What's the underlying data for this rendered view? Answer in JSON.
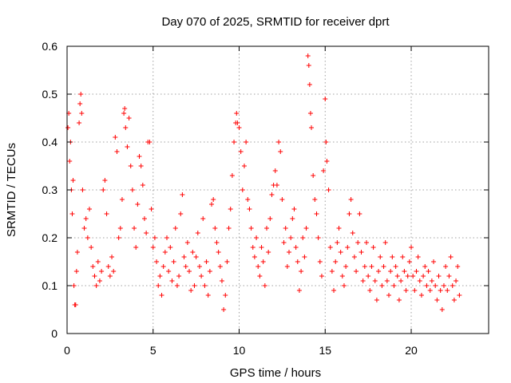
{
  "chart_data": {
    "type": "scatter",
    "title": "Day 070 of 2025, SRMTID for receiver dprt",
    "xlabel": "GPS time / hours",
    "ylabel": "SRMTID / TECUs",
    "xlim": [
      0,
      24.5
    ],
    "ylim": [
      0,
      0.6
    ],
    "xticks": [
      0,
      5,
      10,
      15,
      20
    ],
    "xtick_labels": [
      "0",
      "5",
      "10",
      "15",
      "20"
    ],
    "yticks": [
      0,
      0.1,
      0.2,
      0.3,
      0.4,
      0.5,
      0.6
    ],
    "ytick_labels": [
      "0",
      "0.1",
      "0.2",
      "0.3",
      "0.4",
      "0.5",
      "0.6"
    ],
    "grid": true,
    "marker": "+",
    "color": "#ff0000",
    "series": [
      {
        "name": "SRMTID",
        "points": [
          [
            0.05,
            0.43
          ],
          [
            0.1,
            0.46
          ],
          [
            0.15,
            0.36
          ],
          [
            0.2,
            0.4
          ],
          [
            0.25,
            0.3
          ],
          [
            0.3,
            0.25
          ],
          [
            0.35,
            0.32
          ],
          [
            0.4,
            0.1
          ],
          [
            0.45,
            0.06
          ],
          [
            0.5,
            0.06
          ],
          [
            0.55,
            0.13
          ],
          [
            0.6,
            0.17
          ],
          [
            0.7,
            0.44
          ],
          [
            0.75,
            0.48
          ],
          [
            0.8,
            0.5
          ],
          [
            0.85,
            0.46
          ],
          [
            0.9,
            0.3
          ],
          [
            1.0,
            0.22
          ],
          [
            1.1,
            0.24
          ],
          [
            1.2,
            0.2
          ],
          [
            1.3,
            0.26
          ],
          [
            1.4,
            0.18
          ],
          [
            1.5,
            0.14
          ],
          [
            1.6,
            0.12
          ],
          [
            1.7,
            0.1
          ],
          [
            1.8,
            0.15
          ],
          [
            1.9,
            0.11
          ],
          [
            2.0,
            0.13
          ],
          [
            2.1,
            0.3
          ],
          [
            2.2,
            0.32
          ],
          [
            2.3,
            0.25
          ],
          [
            2.4,
            0.14
          ],
          [
            2.5,
            0.12
          ],
          [
            2.6,
            0.16
          ],
          [
            2.7,
            0.13
          ],
          [
            2.8,
            0.41
          ],
          [
            2.9,
            0.38
          ],
          [
            3.0,
            0.2
          ],
          [
            3.1,
            0.22
          ],
          [
            3.2,
            0.28
          ],
          [
            3.3,
            0.46
          ],
          [
            3.35,
            0.47
          ],
          [
            3.4,
            0.43
          ],
          [
            3.5,
            0.39
          ],
          [
            3.6,
            0.45
          ],
          [
            3.7,
            0.35
          ],
          [
            3.8,
            0.3
          ],
          [
            3.9,
            0.22
          ],
          [
            4.0,
            0.18
          ],
          [
            4.1,
            0.27
          ],
          [
            4.2,
            0.37
          ],
          [
            4.3,
            0.35
          ],
          [
            4.4,
            0.31
          ],
          [
            4.5,
            0.24
          ],
          [
            4.6,
            0.21
          ],
          [
            4.7,
            0.4
          ],
          [
            4.8,
            0.4
          ],
          [
            4.9,
            0.26
          ],
          [
            5.0,
            0.18
          ],
          [
            5.1,
            0.2
          ],
          [
            5.2,
            0.15
          ],
          [
            5.3,
            0.1
          ],
          [
            5.4,
            0.12
          ],
          [
            5.5,
            0.08
          ],
          [
            5.6,
            0.14
          ],
          [
            5.7,
            0.17
          ],
          [
            5.8,
            0.2
          ],
          [
            5.9,
            0.13
          ],
          [
            6.0,
            0.18
          ],
          [
            6.1,
            0.11
          ],
          [
            6.2,
            0.15
          ],
          [
            6.3,
            0.22
          ],
          [
            6.4,
            0.1
          ],
          [
            6.5,
            0.12
          ],
          [
            6.6,
            0.25
          ],
          [
            6.7,
            0.29
          ],
          [
            6.8,
            0.16
          ],
          [
            6.9,
            0.14
          ],
          [
            7.0,
            0.19
          ],
          [
            7.1,
            0.13
          ],
          [
            7.2,
            0.09
          ],
          [
            7.3,
            0.17
          ],
          [
            7.4,
            0.1
          ],
          [
            7.5,
            0.16
          ],
          [
            7.6,
            0.21
          ],
          [
            7.7,
            0.14
          ],
          [
            7.8,
            0.12
          ],
          [
            7.9,
            0.24
          ],
          [
            8.0,
            0.1
          ],
          [
            8.1,
            0.15
          ],
          [
            8.2,
            0.08
          ],
          [
            8.3,
            0.13
          ],
          [
            8.4,
            0.27
          ],
          [
            8.5,
            0.28
          ],
          [
            8.6,
            0.22
          ],
          [
            8.7,
            0.19
          ],
          [
            8.8,
            0.17
          ],
          [
            8.9,
            0.14
          ],
          [
            9.0,
            0.11
          ],
          [
            9.1,
            0.05
          ],
          [
            9.2,
            0.08
          ],
          [
            9.3,
            0.15
          ],
          [
            9.4,
            0.22
          ],
          [
            9.5,
            0.26
          ],
          [
            9.6,
            0.33
          ],
          [
            9.7,
            0.4
          ],
          [
            9.8,
            0.44
          ],
          [
            9.85,
            0.46
          ],
          [
            9.9,
            0.44
          ],
          [
            10.0,
            0.43
          ],
          [
            10.1,
            0.38
          ],
          [
            10.2,
            0.3
          ],
          [
            10.3,
            0.35
          ],
          [
            10.4,
            0.4
          ],
          [
            10.5,
            0.28
          ],
          [
            10.6,
            0.26
          ],
          [
            10.7,
            0.22
          ],
          [
            10.8,
            0.18
          ],
          [
            10.9,
            0.16
          ],
          [
            11.0,
            0.2
          ],
          [
            11.1,
            0.14
          ],
          [
            11.2,
            0.12
          ],
          [
            11.3,
            0.18
          ],
          [
            11.4,
            0.15
          ],
          [
            11.5,
            0.1
          ],
          [
            11.6,
            0.22
          ],
          [
            11.7,
            0.17
          ],
          [
            11.8,
            0.24
          ],
          [
            11.9,
            0.29
          ],
          [
            12.0,
            0.31
          ],
          [
            12.1,
            0.34
          ],
          [
            12.2,
            0.31
          ],
          [
            12.3,
            0.4
          ],
          [
            12.4,
            0.38
          ],
          [
            12.5,
            0.28
          ],
          [
            12.6,
            0.19
          ],
          [
            12.7,
            0.22
          ],
          [
            12.8,
            0.14
          ],
          [
            12.9,
            0.17
          ],
          [
            13.0,
            0.2
          ],
          [
            13.1,
            0.24
          ],
          [
            13.2,
            0.26
          ],
          [
            13.3,
            0.18
          ],
          [
            13.4,
            0.15
          ],
          [
            13.5,
            0.09
          ],
          [
            13.6,
            0.13
          ],
          [
            13.7,
            0.2
          ],
          [
            13.8,
            0.16
          ],
          [
            13.9,
            0.22
          ],
          [
            14.0,
            0.58
          ],
          [
            14.05,
            0.56
          ],
          [
            14.1,
            0.52
          ],
          [
            14.15,
            0.46
          ],
          [
            14.2,
            0.43
          ],
          [
            14.3,
            0.33
          ],
          [
            14.4,
            0.28
          ],
          [
            14.5,
            0.25
          ],
          [
            14.6,
            0.2
          ],
          [
            14.7,
            0.15
          ],
          [
            14.8,
            0.12
          ],
          [
            14.9,
            0.34
          ],
          [
            15.0,
            0.49
          ],
          [
            15.05,
            0.4
          ],
          [
            15.1,
            0.36
          ],
          [
            15.2,
            0.3
          ],
          [
            15.3,
            0.18
          ],
          [
            15.4,
            0.13
          ],
          [
            15.5,
            0.09
          ],
          [
            15.6,
            0.15
          ],
          [
            15.7,
            0.19
          ],
          [
            15.8,
            0.22
          ],
          [
            15.9,
            0.17
          ],
          [
            16.0,
            0.12
          ],
          [
            16.1,
            0.1
          ],
          [
            16.2,
            0.14
          ],
          [
            16.3,
            0.18
          ],
          [
            16.4,
            0.25
          ],
          [
            16.5,
            0.28
          ],
          [
            16.6,
            0.21
          ],
          [
            16.7,
            0.16
          ],
          [
            16.8,
            0.13
          ],
          [
            16.9,
            0.19
          ],
          [
            17.0,
            0.25
          ],
          [
            17.1,
            0.17
          ],
          [
            17.2,
            0.11
          ],
          [
            17.3,
            0.14
          ],
          [
            17.4,
            0.19
          ],
          [
            17.5,
            0.12
          ],
          [
            17.6,
            0.09
          ],
          [
            17.7,
            0.14
          ],
          [
            17.8,
            0.18
          ],
          [
            17.9,
            0.11
          ],
          [
            18.0,
            0.07
          ],
          [
            18.1,
            0.13
          ],
          [
            18.2,
            0.16
          ],
          [
            18.3,
            0.1
          ],
          [
            18.4,
            0.14
          ],
          [
            18.5,
            0.19
          ],
          [
            18.6,
            0.11
          ],
          [
            18.7,
            0.08
          ],
          [
            18.8,
            0.13
          ],
          [
            18.9,
            0.16
          ],
          [
            19.0,
            0.1
          ],
          [
            19.1,
            0.14
          ],
          [
            19.2,
            0.12
          ],
          [
            19.3,
            0.07
          ],
          [
            19.4,
            0.11
          ],
          [
            19.5,
            0.16
          ],
          [
            19.6,
            0.13
          ],
          [
            19.7,
            0.09
          ],
          [
            19.8,
            0.12
          ],
          [
            19.9,
            0.15
          ],
          [
            20.0,
            0.18
          ],
          [
            20.1,
            0.12
          ],
          [
            20.2,
            0.09
          ],
          [
            20.3,
            0.13
          ],
          [
            20.4,
            0.16
          ],
          [
            20.5,
            0.11
          ],
          [
            20.6,
            0.08
          ],
          [
            20.7,
            0.12
          ],
          [
            20.8,
            0.14
          ],
          [
            20.9,
            0.1
          ],
          [
            21.0,
            0.13
          ],
          [
            21.1,
            0.09
          ],
          [
            21.2,
            0.11
          ],
          [
            21.3,
            0.15
          ],
          [
            21.4,
            0.1
          ],
          [
            21.5,
            0.07
          ],
          [
            21.6,
            0.12
          ],
          [
            21.7,
            0.09
          ],
          [
            21.8,
            0.05
          ],
          [
            21.9,
            0.1
          ],
          [
            22.0,
            0.14
          ],
          [
            22.1,
            0.09
          ],
          [
            22.2,
            0.12
          ],
          [
            22.3,
            0.16
          ],
          [
            22.4,
            0.1
          ],
          [
            22.5,
            0.07
          ],
          [
            22.6,
            0.11
          ],
          [
            22.7,
            0.14
          ],
          [
            22.8,
            0.08
          ]
        ]
      }
    ]
  }
}
